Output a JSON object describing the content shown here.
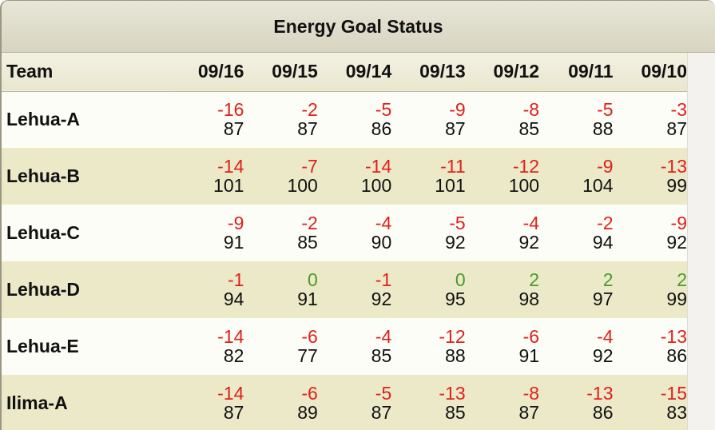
{
  "title": "Energy Goal Status",
  "header": {
    "team_label": "Team",
    "dates": [
      "09/16",
      "09/15",
      "09/14",
      "09/13",
      "09/12",
      "09/11",
      "09/10"
    ]
  },
  "colors": {
    "negative": "#e0201b",
    "non_negative": "#4a9a2a",
    "row_alt": "#ebe9c8"
  },
  "rows": [
    {
      "team": "Lehua-A",
      "cells": [
        {
          "delta": "-16",
          "value": "87"
        },
        {
          "delta": "-2",
          "value": "87"
        },
        {
          "delta": "-5",
          "value": "86"
        },
        {
          "delta": "-9",
          "value": "87"
        },
        {
          "delta": "-8",
          "value": "85"
        },
        {
          "delta": "-5",
          "value": "88"
        },
        {
          "delta": "-3",
          "value": "87"
        }
      ]
    },
    {
      "team": "Lehua-B",
      "cells": [
        {
          "delta": "-14",
          "value": "101"
        },
        {
          "delta": "-7",
          "value": "100"
        },
        {
          "delta": "-14",
          "value": "100"
        },
        {
          "delta": "-11",
          "value": "101"
        },
        {
          "delta": "-12",
          "value": "100"
        },
        {
          "delta": "-9",
          "value": "104"
        },
        {
          "delta": "-13",
          "value": "99"
        }
      ]
    },
    {
      "team": "Lehua-C",
      "cells": [
        {
          "delta": "-9",
          "value": "91"
        },
        {
          "delta": "-2",
          "value": "85"
        },
        {
          "delta": "-4",
          "value": "90"
        },
        {
          "delta": "-5",
          "value": "92"
        },
        {
          "delta": "-4",
          "value": "92"
        },
        {
          "delta": "-2",
          "value": "94"
        },
        {
          "delta": "-9",
          "value": "92"
        }
      ]
    },
    {
      "team": "Lehua-D",
      "cells": [
        {
          "delta": "-1",
          "value": "94"
        },
        {
          "delta": "0",
          "value": "91"
        },
        {
          "delta": "-1",
          "value": "92"
        },
        {
          "delta": "0",
          "value": "95"
        },
        {
          "delta": "2",
          "value": "98"
        },
        {
          "delta": "2",
          "value": "97"
        },
        {
          "delta": "2",
          "value": "99"
        }
      ]
    },
    {
      "team": "Lehua-E",
      "cells": [
        {
          "delta": "-14",
          "value": "82"
        },
        {
          "delta": "-6",
          "value": "77"
        },
        {
          "delta": "-4",
          "value": "85"
        },
        {
          "delta": "-12",
          "value": "88"
        },
        {
          "delta": "-6",
          "value": "91"
        },
        {
          "delta": "-4",
          "value": "92"
        },
        {
          "delta": "-13",
          "value": "86"
        }
      ]
    },
    {
      "team": "Ilima-A",
      "cells": [
        {
          "delta": "-14",
          "value": "87"
        },
        {
          "delta": "-6",
          "value": "89"
        },
        {
          "delta": "-5",
          "value": "87"
        },
        {
          "delta": "-13",
          "value": "85"
        },
        {
          "delta": "-8",
          "value": "87"
        },
        {
          "delta": "-13",
          "value": "86"
        },
        {
          "delta": "-15",
          "value": "83"
        }
      ]
    }
  ]
}
